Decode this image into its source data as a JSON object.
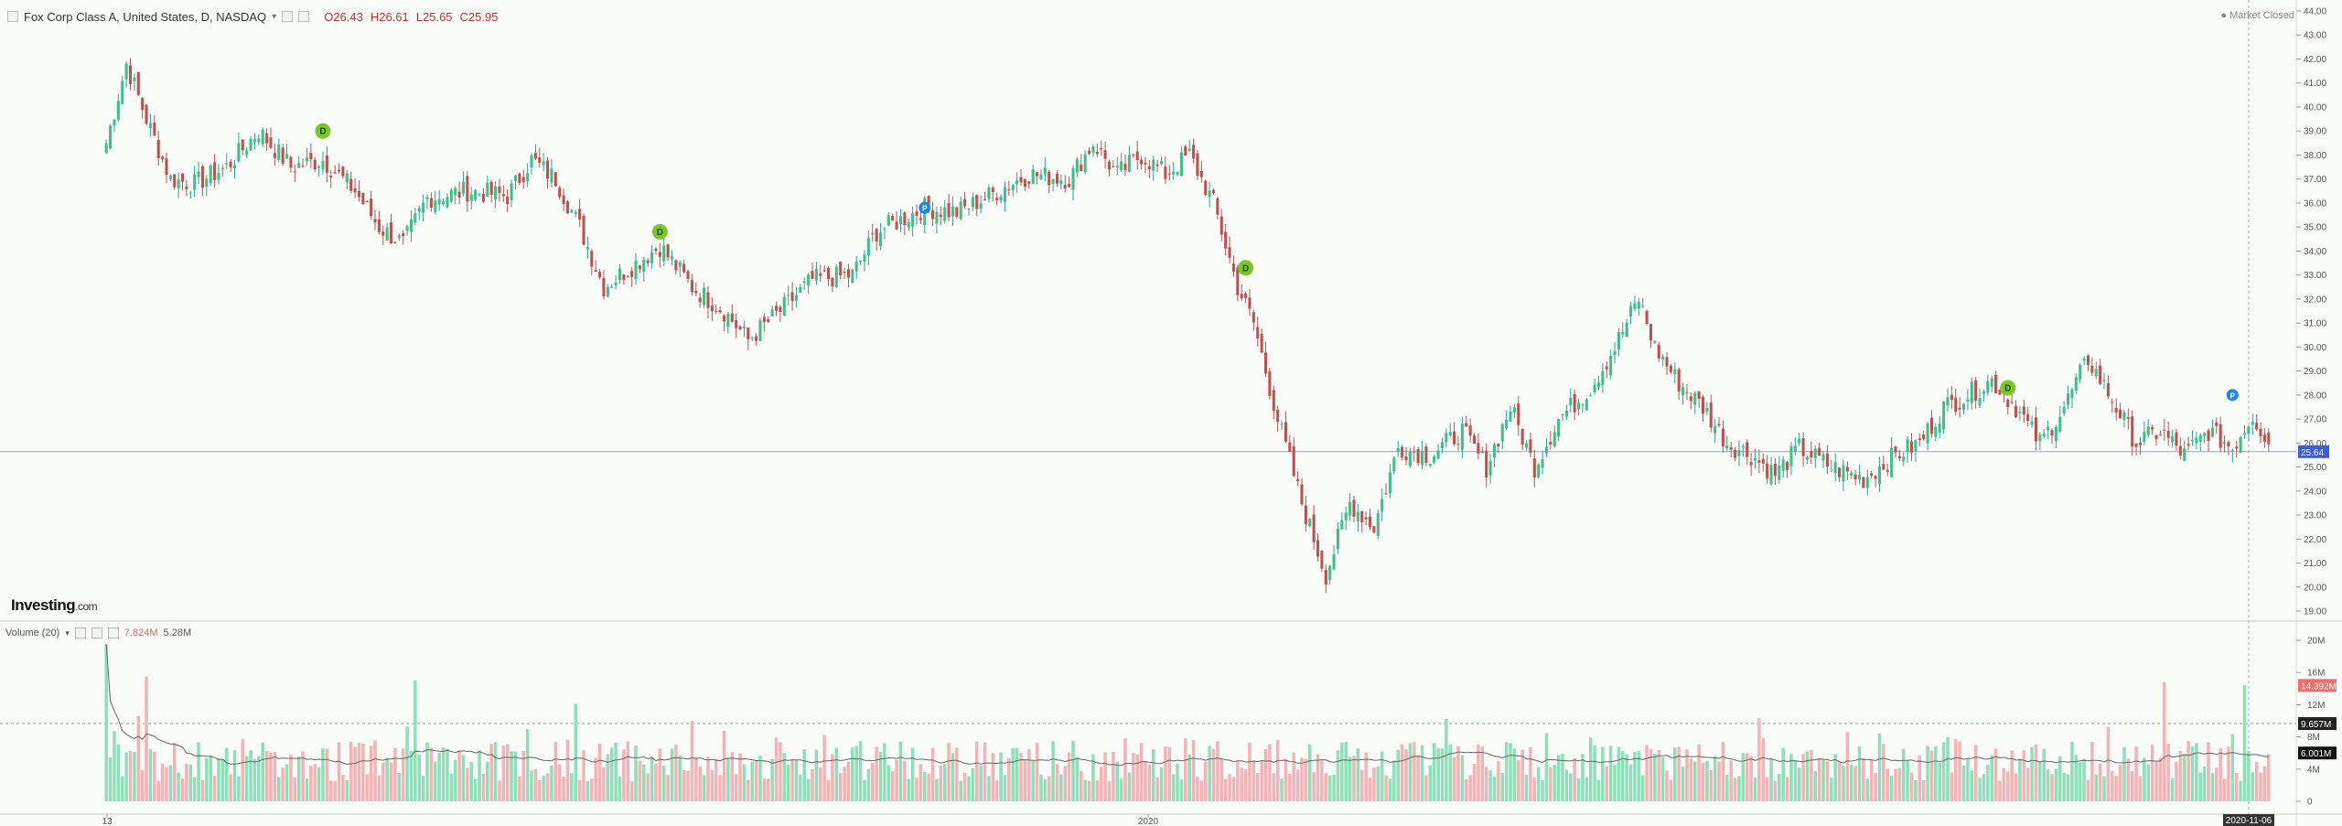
{
  "header": {
    "symbol_title": "Fox Corp Class A, United States, D, NASDAQ",
    "caret": "▾",
    "open": "O26.43",
    "high": "H26.61",
    "low": "L25.65",
    "close": "C25.95"
  },
  "market_status": "● Market Closed",
  "logo": {
    "main": "Investing",
    "suffix": ".com"
  },
  "volume_header": {
    "label": "Volume (20)",
    "caret": "▾",
    "value1": "7.824M",
    "value2": "5.28M"
  },
  "price_axis": {
    "ticks": [
      "44.00",
      "43.00",
      "42.00",
      "41.00",
      "40.00",
      "39.00",
      "38.00",
      "37.00",
      "36.00",
      "35.00",
      "34.00",
      "33.00",
      "32.00",
      "31.00",
      "30.00",
      "29.00",
      "28.00",
      "27.00",
      "26.00",
      "25.00",
      "24.00",
      "23.00",
      "22.00",
      "21.00",
      "20.00",
      "19.00"
    ],
    "current_price_label": "25.64",
    "current_price": 25.64
  },
  "volume_axis": {
    "ticks": [
      "20M",
      "16M",
      "12M",
      "8M",
      "4M",
      "0"
    ],
    "badges": [
      "14.392M",
      "9.657M",
      "6.001M"
    ]
  },
  "time_axis": {
    "labels": [
      "13",
      "2020"
    ],
    "current_date_badge": "2020-11-06"
  },
  "markers": [
    {
      "letter": "D",
      "color": "#7dc62a"
    },
    {
      "letter": "D",
      "color": "#7dc62a"
    },
    {
      "letter": "P",
      "color": "#1e88e5"
    },
    {
      "letter": "D",
      "color": "#7dc62a"
    },
    {
      "letter": "D",
      "color": "#7dc62a"
    },
    {
      "letter": "P",
      "color": "#1e88e5"
    }
  ],
  "colors": {
    "up": "#26a69a",
    "down": "#c0504d",
    "vol_up": "#8de0b9",
    "vol_down": "#f6b3b6",
    "price_line": "#2962ff"
  },
  "chart_data": {
    "type": "candlestick",
    "title": "Fox Corp Class A, United States, D, NASDAQ",
    "y_range": [
      19,
      44
    ],
    "volume_range_millions": [
      0,
      20
    ],
    "anchors": [
      {
        "i": 0,
        "p": 38.5
      },
      {
        "i": 5,
        "p": 41.8
      },
      {
        "i": 10,
        "p": 39.5
      },
      {
        "i": 16,
        "p": 37.0
      },
      {
        "i": 22,
        "p": 36.8
      },
      {
        "i": 30,
        "p": 37.5
      },
      {
        "i": 38,
        "p": 39.0
      },
      {
        "i": 46,
        "p": 37.5
      },
      {
        "i": 54,
        "p": 37.8
      },
      {
        "i": 62,
        "p": 36.5
      },
      {
        "i": 68,
        "p": 35.0
      },
      {
        "i": 74,
        "p": 34.3
      },
      {
        "i": 80,
        "p": 36.2
      },
      {
        "i": 90,
        "p": 36.5
      },
      {
        "i": 100,
        "p": 36.3
      },
      {
        "i": 106,
        "p": 37.8
      },
      {
        "i": 112,
        "p": 37.0
      },
      {
        "i": 118,
        "p": 35.0
      },
      {
        "i": 124,
        "p": 32.5
      },
      {
        "i": 132,
        "p": 33.5
      },
      {
        "i": 138,
        "p": 34.2
      },
      {
        "i": 146,
        "p": 32.5
      },
      {
        "i": 154,
        "p": 31.5
      },
      {
        "i": 160,
        "p": 30.3
      },
      {
        "i": 168,
        "p": 31.5
      },
      {
        "i": 176,
        "p": 32.8
      },
      {
        "i": 186,
        "p": 33.0
      },
      {
        "i": 192,
        "p": 34.8
      },
      {
        "i": 198,
        "p": 35.3
      },
      {
        "i": 204,
        "p": 35.8
      },
      {
        "i": 212,
        "p": 35.6
      },
      {
        "i": 220,
        "p": 36.3
      },
      {
        "i": 230,
        "p": 37.2
      },
      {
        "i": 240,
        "p": 37.0
      },
      {
        "i": 246,
        "p": 38.5
      },
      {
        "i": 252,
        "p": 37.2
      },
      {
        "i": 258,
        "p": 38.0
      },
      {
        "i": 264,
        "p": 37.2
      },
      {
        "i": 270,
        "p": 38.0
      },
      {
        "i": 276,
        "p": 36.0
      },
      {
        "i": 282,
        "p": 32.5
      },
      {
        "i": 286,
        "p": 31.0
      },
      {
        "i": 292,
        "p": 27.0
      },
      {
        "i": 298,
        "p": 23.5
      },
      {
        "i": 304,
        "p": 20.5
      },
      {
        "i": 310,
        "p": 23.5
      },
      {
        "i": 316,
        "p": 22.5
      },
      {
        "i": 322,
        "p": 25.8
      },
      {
        "i": 330,
        "p": 25.5
      },
      {
        "i": 338,
        "p": 26.5
      },
      {
        "i": 344,
        "p": 25.0
      },
      {
        "i": 350,
        "p": 27.5
      },
      {
        "i": 356,
        "p": 25.0
      },
      {
        "i": 362,
        "p": 27.0
      },
      {
        "i": 370,
        "p": 28.3
      },
      {
        "i": 376,
        "p": 30.0
      },
      {
        "i": 382,
        "p": 32.0
      },
      {
        "i": 386,
        "p": 30.0
      },
      {
        "i": 392,
        "p": 28.5
      },
      {
        "i": 398,
        "p": 27.5
      },
      {
        "i": 404,
        "p": 26.0
      },
      {
        "i": 410,
        "p": 25.5
      },
      {
        "i": 416,
        "p": 24.7
      },
      {
        "i": 422,
        "p": 25.8
      },
      {
        "i": 430,
        "p": 25.0
      },
      {
        "i": 438,
        "p": 24.5
      },
      {
        "i": 446,
        "p": 25.5
      },
      {
        "i": 452,
        "p": 26.0
      },
      {
        "i": 458,
        "p": 27.5
      },
      {
        "i": 464,
        "p": 28.0
      },
      {
        "i": 470,
        "p": 28.6
      },
      {
        "i": 476,
        "p": 27.5
      },
      {
        "i": 482,
        "p": 26.0
      },
      {
        "i": 488,
        "p": 27.5
      },
      {
        "i": 494,
        "p": 29.5
      },
      {
        "i": 500,
        "p": 27.8
      },
      {
        "i": 506,
        "p": 26.0
      },
      {
        "i": 512,
        "p": 26.5
      },
      {
        "i": 518,
        "p": 25.5
      },
      {
        "i": 524,
        "p": 26.5
      },
      {
        "i": 530,
        "p": 25.8
      },
      {
        "i": 535,
        "p": 27.2
      },
      {
        "i": 539,
        "p": 25.95
      }
    ],
    "bar_count": 540,
    "last_bar": {
      "open": 26.43,
      "high": 26.61,
      "low": 25.65,
      "close": 25.95
    },
    "xlabel": "",
    "ylabel": "",
    "grid": false,
    "legend": "none"
  }
}
